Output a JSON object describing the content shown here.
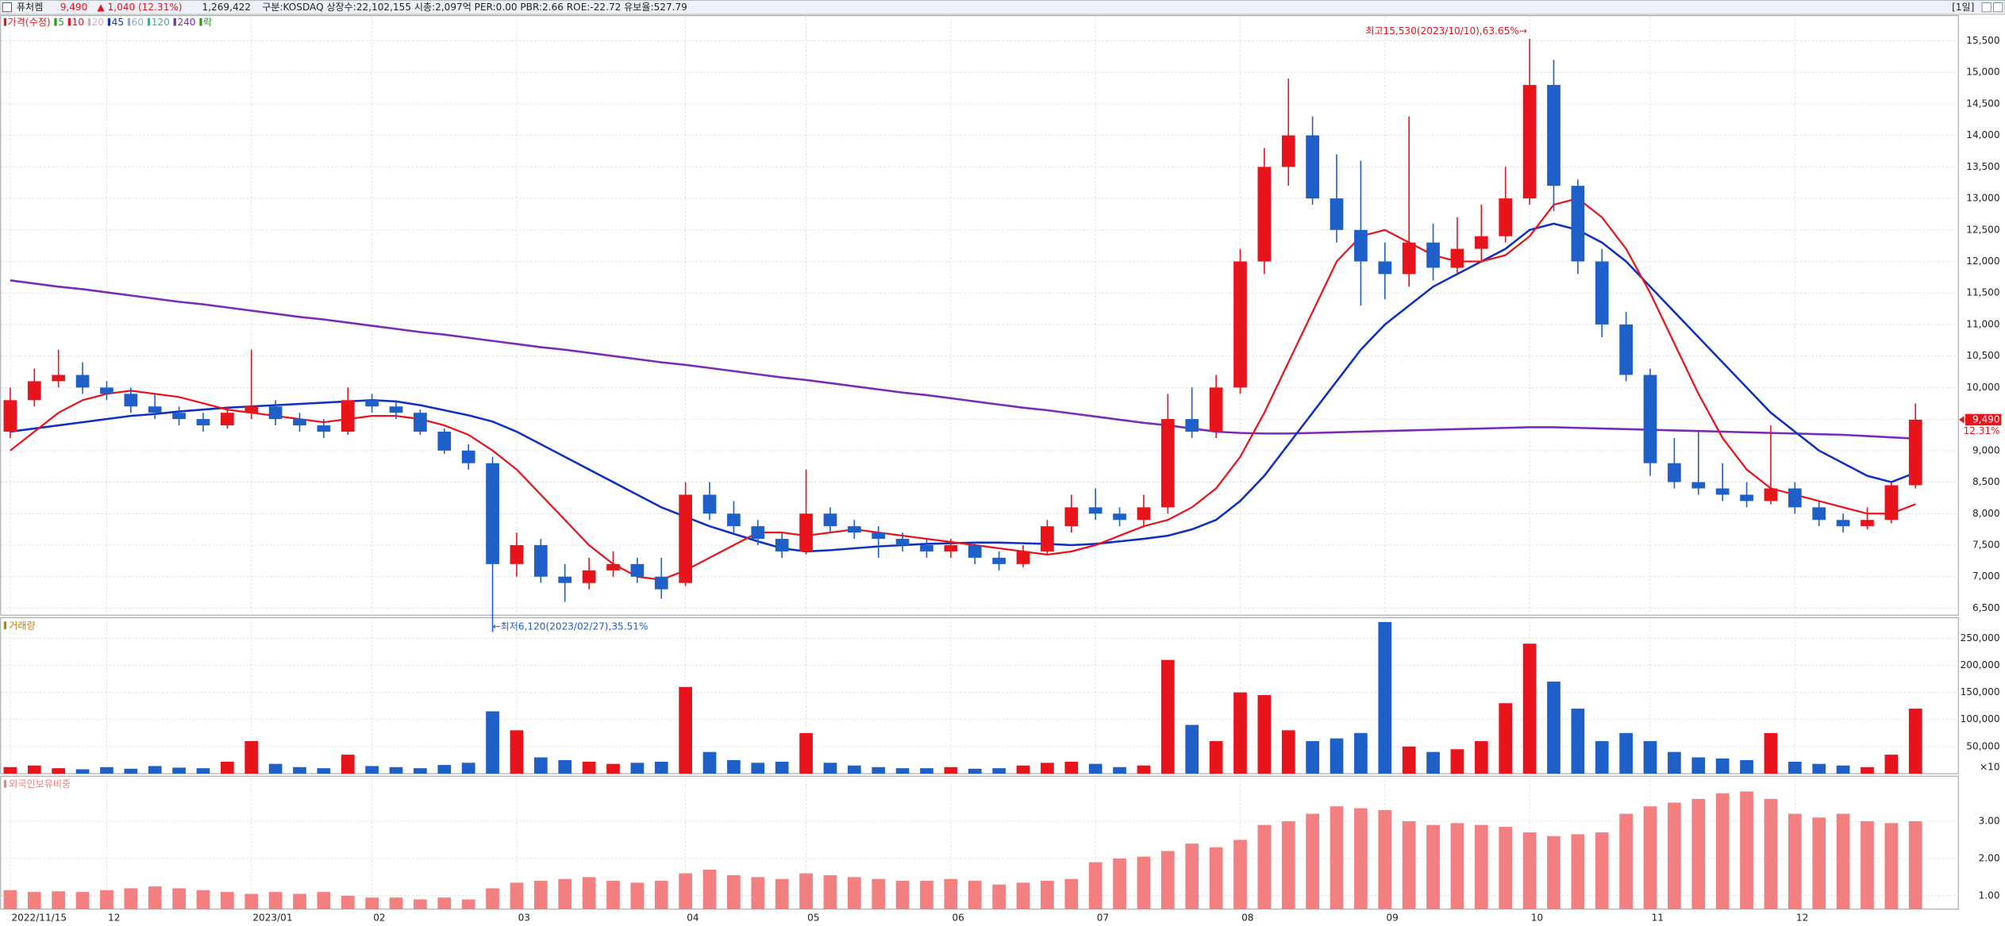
{
  "header": {
    "checkbox_name": "퓨처켐",
    "price": "9,490",
    "change": "▲ 1,040 (12.31%)",
    "volume": "1,269,422",
    "info": "구분:KOSDAQ 상장수:22,102,155 시총:2,097억 PER:0.00 PBR:2.66 ROE:-22.72 유보율:527.79",
    "period": "[1일]"
  },
  "chart_data": [
    {
      "type": "candlestick",
      "legend": [
        {
          "name": "가격(수정)",
          "color": "#e8141c"
        },
        {
          "name": "5",
          "color": "#22a022"
        },
        {
          "name": "10",
          "color": "#e8141c"
        },
        {
          "name": "20",
          "color": "#e0a0e0"
        },
        {
          "name": "45",
          "color": "#1030c0"
        },
        {
          "name": "60",
          "color": "#88aadd"
        },
        {
          "name": "120",
          "color": "#40b090"
        },
        {
          "name": "240",
          "color": "#7a2ab8"
        },
        {
          "name": "락",
          "color": "#22a022"
        }
      ],
      "categories": [
        "2022/11/15",
        null,
        null,
        null,
        "12",
        null,
        null,
        null,
        null,
        null,
        "2023/01",
        null,
        null,
        null,
        null,
        "02",
        null,
        null,
        null,
        null,
        null,
        "03",
        null,
        null,
        null,
        null,
        null,
        null,
        "04",
        null,
        null,
        null,
        null,
        "05",
        null,
        null,
        null,
        null,
        null,
        "06",
        null,
        null,
        null,
        null,
        null,
        "07",
        null,
        null,
        null,
        null,
        null,
        "08",
        null,
        null,
        null,
        null,
        null,
        "09",
        null,
        null,
        null,
        null,
        null,
        "10",
        null,
        null,
        null,
        null,
        "11",
        null,
        null,
        null,
        null,
        null,
        "12",
        null,
        null,
        null,
        null,
        null
      ],
      "open": [
        9300,
        9800,
        10100,
        10200,
        10000,
        9900,
        9700,
        9600,
        9500,
        9400,
        9600,
        9700,
        9500,
        9400,
        9300,
        9800,
        9700,
        9600,
        9300,
        9000,
        8800,
        7200,
        7500,
        7000,
        6900,
        7100,
        7200,
        7000,
        6900,
        8300,
        8000,
        7800,
        7600,
        7400,
        8000,
        7800,
        7700,
        7600,
        7500,
        7400,
        7500,
        7300,
        7200,
        7400,
        7800,
        8100,
        8000,
        7900,
        8100,
        9500,
        9300,
        10000,
        12000,
        13500,
        14000,
        13000,
        12500,
        12000,
        11800,
        12300,
        11900,
        12200,
        12400,
        13000,
        14800,
        13200,
        12000,
        11000,
        10200,
        8800,
        8500,
        8400,
        8300,
        8200,
        8400,
        8100,
        7900,
        7800,
        7900,
        8450
      ],
      "high": [
        10000,
        10300,
        10600,
        10400,
        10100,
        10000,
        9900,
        9700,
        9600,
        9700,
        10600,
        9800,
        9600,
        9500,
        10000,
        9900,
        9800,
        9650,
        9350,
        9100,
        8900,
        7700,
        7600,
        7200,
        7300,
        7400,
        7300,
        7300,
        8500,
        8500,
        8200,
        7900,
        7700,
        8700,
        8100,
        7900,
        7800,
        7700,
        7600,
        7600,
        7550,
        7400,
        7500,
        7900,
        8300,
        8400,
        8100,
        8300,
        9900,
        10000,
        10200,
        12200,
        13800,
        14900,
        14300,
        13700,
        13600,
        12300,
        14300,
        12600,
        12700,
        12900,
        13500,
        15530,
        15200,
        13300,
        12200,
        11200,
        10300,
        9200,
        9300,
        8800,
        8500,
        9400,
        8500,
        8200,
        8000,
        8100,
        8500,
        9750
      ],
      "low": [
        9200,
        9700,
        10000,
        9900,
        9800,
        9600,
        9500,
        9400,
        9300,
        9350,
        9500,
        9400,
        9300,
        9200,
        9250,
        9600,
        9500,
        9250,
        8950,
        8700,
        6120,
        7000,
        6900,
        6600,
        6800,
        7000,
        6900,
        6650,
        6850,
        7900,
        7700,
        7500,
        7300,
        7350,
        7700,
        7600,
        7300,
        7400,
        7300,
        7300,
        7200,
        7100,
        7150,
        7350,
        7700,
        7900,
        7800,
        7800,
        8000,
        9200,
        9200,
        9900,
        11800,
        13200,
        12900,
        12300,
        11300,
        11400,
        11600,
        11700,
        11800,
        12000,
        12300,
        12900,
        12800,
        11800,
        10800,
        10100,
        8600,
        8400,
        8300,
        8200,
        8100,
        8150,
        8000,
        7800,
        7700,
        7750,
        7850,
        8400
      ],
      "close": [
        9800,
        10100,
        10200,
        10000,
        9900,
        9700,
        9600,
        9500,
        9400,
        9600,
        9700,
        9500,
        9400,
        9300,
        9800,
        9700,
        9600,
        9300,
        9000,
        8800,
        7200,
        7500,
        7000,
        6900,
        7100,
        7200,
        7000,
        6800,
        8300,
        8000,
        7800,
        7600,
        7400,
        8000,
        7800,
        7700,
        7600,
        7500,
        7400,
        7500,
        7300,
        7200,
        7400,
        7800,
        8100,
        8000,
        7900,
        8100,
        9500,
        9300,
        10000,
        12000,
        13500,
        14000,
        13000,
        12500,
        12000,
        11800,
        12300,
        11900,
        12200,
        12400,
        13000,
        14800,
        13200,
        12000,
        11000,
        10200,
        8800,
        8500,
        8400,
        8300,
        8200,
        8400,
        8100,
        7900,
        7800,
        7900,
        8450,
        9490
      ],
      "up_color": "#e8141c",
      "down_color": "#1f5fc8",
      "ma": [
        {
          "color": "#7a2ab8",
          "width": 1.6,
          "values": [
            11700,
            11650,
            11600,
            11560,
            11510,
            11460,
            11410,
            11360,
            11320,
            11270,
            11220,
            11170,
            11120,
            11080,
            11030,
            10980,
            10930,
            10880,
            10840,
            10790,
            10740,
            10690,
            10640,
            10600,
            10550,
            10500,
            10450,
            10400,
            10360,
            10310,
            10260,
            10210,
            10160,
            10120,
            10070,
            10020,
            9970,
            9920,
            9880,
            9830,
            9780,
            9730,
            9680,
            9640,
            9590,
            9540,
            9490,
            9440,
            9400,
            9350,
            9300,
            9280,
            9270,
            9270,
            9280,
            9290,
            9300,
            9310,
            9320,
            9330,
            9340,
            9350,
            9360,
            9370,
            9370,
            9360,
            9350,
            9340,
            9330,
            9320,
            9310,
            9300,
            9290,
            9280,
            9270,
            9260,
            9250,
            9230,
            9210,
            9190
          ]
        },
        {
          "color": "#1030c0",
          "width": 1.6,
          "values": [
            9300,
            9350,
            9400,
            9450,
            9500,
            9550,
            9580,
            9620,
            9650,
            9680,
            9700,
            9720,
            9740,
            9760,
            9780,
            9800,
            9780,
            9720,
            9640,
            9560,
            9460,
            9300,
            9100,
            8900,
            8700,
            8500,
            8300,
            8100,
            7950,
            7800,
            7680,
            7560,
            7450,
            7400,
            7420,
            7450,
            7480,
            7500,
            7520,
            7530,
            7540,
            7540,
            7530,
            7520,
            7500,
            7520,
            7560,
            7600,
            7650,
            7750,
            7900,
            8200,
            8600,
            9100,
            9600,
            10100,
            10600,
            11000,
            11300,
            11600,
            11800,
            12000,
            12200,
            12500,
            12600,
            12500,
            12300,
            12000,
            11600,
            11200,
            10800,
            10400,
            10000,
            9600,
            9300,
            9000,
            8800,
            8600,
            8500,
            8650
          ]
        },
        {
          "color": "#e8141c",
          "width": 1.4,
          "values": [
            9000,
            9300,
            9600,
            9800,
            9900,
            9950,
            9900,
            9850,
            9750,
            9650,
            9600,
            9550,
            9500,
            9450,
            9500,
            9550,
            9550,
            9500,
            9400,
            9250,
            9000,
            8700,
            8300,
            7900,
            7500,
            7200,
            7000,
            6950,
            7100,
            7300,
            7500,
            7700,
            7700,
            7650,
            7700,
            7750,
            7700,
            7650,
            7600,
            7550,
            7500,
            7450,
            7400,
            7350,
            7400,
            7500,
            7650,
            7800,
            7900,
            8100,
            8400,
            8900,
            9600,
            10400,
            11200,
            12000,
            12400,
            12500,
            12300,
            12100,
            12000,
            12000,
            12100,
            12400,
            12900,
            13000,
            12700,
            12200,
            11500,
            10700,
            9900,
            9200,
            8700,
            8400,
            8300,
            8200,
            8100,
            8000,
            8000,
            8150
          ]
        }
      ],
      "ylim": [
        6390,
        15900
      ],
      "yticks": [
        {
          "value": 6500,
          "label": "6,500"
        },
        {
          "value": 7000,
          "label": "7,000"
        },
        {
          "value": 7500,
          "label": "7,500"
        },
        {
          "value": 8000,
          "label": "8,000"
        },
        {
          "value": 8500,
          "label": "8,500"
        },
        {
          "value": 9000,
          "label": "9,000"
        },
        {
          "value": 9500,
          "label": "9,500"
        },
        {
          "value": 10000,
          "label": "10,000"
        },
        {
          "value": 10500,
          "label": "10,500"
        },
        {
          "value": 11000,
          "label": "11,000"
        },
        {
          "value": 11500,
          "label": "11,500"
        },
        {
          "value": 12000,
          "label": "12,000"
        },
        {
          "value": 12500,
          "label": "12,500"
        },
        {
          "value": 13000,
          "label": "13,000"
        },
        {
          "value": 13500,
          "label": "13,500"
        },
        {
          "value": 14000,
          "label": "14,000"
        },
        {
          "value": 14500,
          "label": "14,500"
        },
        {
          "value": 15000,
          "label": "15,000"
        },
        {
          "value": 15500,
          "label": "15,500"
        }
      ],
      "high_annotation": {
        "text": "최고15,530(2023/10/10),63.65%→",
        "value": 15530
      },
      "low_annotation": {
        "text": "←최저6,120(2023/02/27),35.51%",
        "value": 6120
      },
      "last_price": {
        "value": 9490,
        "label": "9,490",
        "change": "12.31%"
      }
    },
    {
      "type": "bar",
      "title": "거래량",
      "unit_label": "×10",
      "values": [
        12000,
        15000,
        10000,
        8000,
        12000,
        9000,
        14000,
        11000,
        10000,
        22000,
        60000,
        18000,
        12000,
        10000,
        35000,
        14000,
        12000,
        10000,
        16000,
        20000,
        115000,
        80000,
        30000,
        25000,
        22000,
        18000,
        20000,
        22000,
        160000,
        40000,
        25000,
        20000,
        22000,
        75000,
        20000,
        15000,
        12000,
        10000,
        10000,
        12000,
        9000,
        10000,
        15000,
        20000,
        22000,
        18000,
        12000,
        15000,
        210000,
        90000,
        60000,
        150000,
        145000,
        80000,
        60000,
        65000,
        75000,
        280000,
        50000,
        40000,
        45000,
        60000,
        130000,
        240000,
        170000,
        120000,
        60000,
        75000,
        60000,
        40000,
        30000,
        28000,
        25000,
        75000,
        22000,
        18000,
        15000,
        12000,
        35000,
        120000
      ],
      "ylim": [
        0,
        288000
      ],
      "yticks": [
        {
          "value": 50000,
          "label": "50,000"
        },
        {
          "value": 100000,
          "label": "100,000"
        },
        {
          "value": 150000,
          "label": "150,000"
        },
        {
          "value": 200000,
          "label": "200,000"
        },
        {
          "value": 250000,
          "label": "250,000"
        }
      ]
    },
    {
      "type": "bar",
      "title": "외국인보유비중",
      "color": "#f28080",
      "values": [
        1.15,
        1.1,
        1.12,
        1.1,
        1.15,
        1.2,
        1.25,
        1.2,
        1.15,
        1.1,
        1.05,
        1.1,
        1.05,
        1.1,
        1.0,
        0.95,
        0.95,
        0.9,
        0.95,
        0.9,
        1.2,
        1.35,
        1.4,
        1.45,
        1.5,
        1.4,
        1.35,
        1.4,
        1.6,
        1.7,
        1.55,
        1.5,
        1.45,
        1.6,
        1.55,
        1.5,
        1.45,
        1.4,
        1.4,
        1.45,
        1.4,
        1.3,
        1.35,
        1.4,
        1.45,
        1.9,
        2.0,
        2.05,
        2.2,
        2.4,
        2.3,
        2.5,
        2.9,
        3.0,
        3.2,
        3.4,
        3.35,
        3.3,
        3.0,
        2.9,
        2.95,
        2.9,
        2.85,
        2.7,
        2.6,
        2.65,
        2.7,
        3.2,
        3.4,
        3.5,
        3.6,
        3.75,
        3.8,
        3.6,
        3.2,
        3.1,
        3.2,
        3.0,
        2.95,
        3.0
      ],
      "ylim": [
        0.64,
        4.21
      ],
      "yticks": [
        {
          "value": 1,
          "label": "1.00"
        },
        {
          "value": 2,
          "label": "2.00"
        },
        {
          "value": 3,
          "label": "3.00"
        }
      ]
    }
  ]
}
